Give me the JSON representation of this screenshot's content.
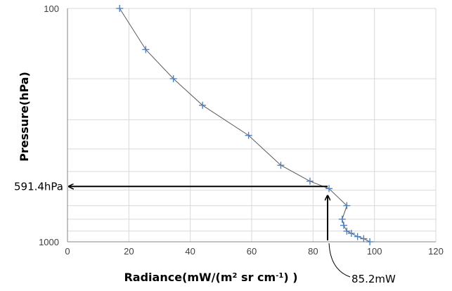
{
  "chart_data": {
    "type": "scatter",
    "title": "",
    "xlabel": "Radiance(mW/(m",
    "xlabel_sup1": "2",
    "xlabel_mid": " sr cm",
    "xlabel_sup2": "-1",
    "xlabel_end": ") )",
    "ylabel": "Pressure(hPa)",
    "xlim": [
      0,
      120
    ],
    "ylim": [
      100,
      1000
    ],
    "y_scale": "log",
    "y_reversed": true,
    "x_ticks": [
      0,
      20,
      40,
      60,
      80,
      100,
      120
    ],
    "x_tick_labels": [
      "0",
      "20",
      "40",
      "60",
      "80",
      "100",
      "120"
    ],
    "y_ticks": [
      100,
      1000
    ],
    "y_tick_labels": [
      "100",
      "1000"
    ],
    "y_minor_gridlines": [
      200,
      300,
      400,
      500,
      600,
      700,
      800,
      900
    ],
    "grid": true,
    "line_color": "#595959",
    "marker_color": "#4F81BD",
    "series": [
      {
        "x": [
          17,
          25.5,
          34.5,
          44,
          59,
          69.5,
          79,
          85.2,
          91,
          89.5,
          90,
          91,
          92.5,
          94.5,
          96.5,
          98.5
        ],
        "y": [
          100,
          150,
          200,
          260,
          350,
          470,
          550,
          591.4,
          700,
          800,
          850,
          900,
          920,
          950,
          970,
          1000
        ]
      }
    ],
    "annotations": [
      {
        "label": "591.4hPa",
        "value": 591.4
      },
      {
        "label": "85.2mW",
        "value": 85.2
      }
    ]
  }
}
